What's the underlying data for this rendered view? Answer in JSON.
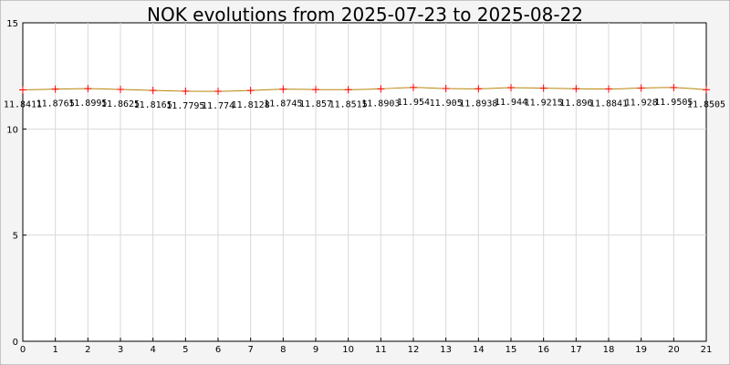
{
  "chart_data": {
    "type": "line",
    "title": "NOK evolutions from 2025-07-23 to 2025-08-22",
    "x": [
      0,
      1,
      2,
      3,
      4,
      5,
      6,
      7,
      8,
      9,
      10,
      11,
      12,
      13,
      14,
      15,
      16,
      17,
      18,
      19,
      20,
      21
    ],
    "xtick_labels": [
      "0",
      "1",
      "2",
      "3",
      "4",
      "5",
      "6",
      "7",
      "8",
      "9",
      "10",
      "11",
      "12",
      "13",
      "14",
      "15",
      "16",
      "17",
      "18",
      "19",
      "20",
      "21"
    ],
    "values": [
      11.8411,
      11.8765,
      11.8995,
      11.8625,
      11.8165,
      11.7795,
      11.774,
      11.8128,
      11.8745,
      11.857,
      11.8515,
      11.8903,
      11.954,
      11.905,
      11.8938,
      11.944,
      11.9215,
      11.896,
      11.8841,
      11.928,
      11.9505,
      11.8505
    ],
    "data_labels": [
      "11.8411",
      "11.8765",
      "11.8995",
      "11.8625",
      "11.8165",
      "11.7795",
      "11.774",
      "11.8128",
      "11.8745",
      "11.857",
      "11.8515",
      "11.8903",
      "11.954",
      "11.905",
      "11.8938",
      "11.944",
      "11.9215",
      "11.896",
      "11.8841",
      "11.928",
      "11.9505",
      "11.8505"
    ],
    "ylim": [
      0,
      15
    ],
    "yticks": [
      0,
      5,
      10,
      15
    ],
    "xlim": [
      0,
      21
    ],
    "grid": true,
    "xlabel": "",
    "ylabel": "",
    "colors": {
      "background": "#f4f4f4",
      "plot_area": "#ffffff",
      "grid": "#d9d9d9",
      "axis": "#000000",
      "line": "#b8860b",
      "marker": "#ff0000"
    }
  }
}
